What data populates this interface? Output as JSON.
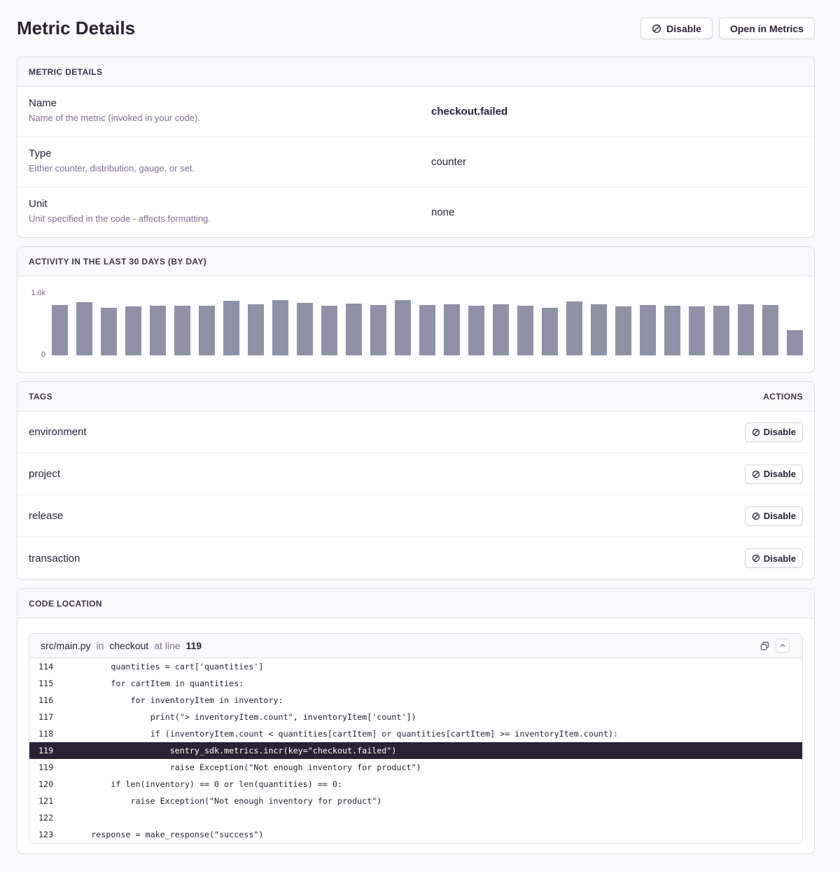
{
  "page": {
    "title": "Metric Details"
  },
  "header_buttons": {
    "disable": "Disable",
    "open": "Open in Metrics"
  },
  "details_panel": {
    "title": "METRIC DETAILS",
    "rows": [
      {
        "label": "Name",
        "description": "Name of the metric (invoked in your code).",
        "value": "checkout.failed",
        "bold": true
      },
      {
        "label": "Type",
        "description": "Either counter, distribution, gauge, or set.",
        "value": "counter",
        "bold": false
      },
      {
        "label": "Unit",
        "description": "Unit specified in the code - affects formatting.",
        "value": "none",
        "bold": false
      }
    ]
  },
  "chart_panel": {
    "title": "ACTIVITY IN THE LAST 30 DAYS (BY DAY)"
  },
  "chart_data": {
    "type": "bar",
    "title": "ACTIVITY IN THE LAST 30 DAYS (BY DAY)",
    "values": [
      1460,
      1530,
      1380,
      1410,
      1430,
      1440,
      1440,
      1570,
      1480,
      1600,
      1520,
      1440,
      1500,
      1460,
      1590,
      1460,
      1480,
      1440,
      1480,
      1430,
      1380,
      1550,
      1480,
      1410,
      1460,
      1440,
      1410,
      1430,
      1480,
      1460,
      720
    ],
    "ylim": [
      0,
      1800
    ],
    "yticks": [
      "1.8k",
      "0"
    ],
    "bar_color": "#8f91a8",
    "grid": false,
    "legend": false
  },
  "tags_panel": {
    "title": "TAGS",
    "actions_label": "ACTIONS",
    "disable_label": "Disable",
    "tags": [
      "environment",
      "project",
      "release",
      "transaction"
    ]
  },
  "code_panel": {
    "title": "CODE LOCATION",
    "file": "src/main.py",
    "in_word": "in",
    "function": "checkout",
    "at_line_words": "at line",
    "line_number": "119",
    "lines": [
      {
        "no": "114",
        "code": "        quantities = cart['quantities']",
        "highlight": false
      },
      {
        "no": "115",
        "code": "        for cartItem in quantities:",
        "highlight": false
      },
      {
        "no": "116",
        "code": "            for inventoryItem in inventory:",
        "highlight": false
      },
      {
        "no": "117",
        "code": "                print(\"> inventoryItem.count\", inventoryItem['count'])",
        "highlight": false
      },
      {
        "no": "118",
        "code": "                if (inventoryItem.count < quantities[cartItem] or quantities[cartItem] >= inventoryItem.count):",
        "highlight": false
      },
      {
        "no": "119",
        "code": "                    sentry_sdk.metrics.incr(key=\"checkout.failed\")",
        "highlight": true
      },
      {
        "no": "119",
        "code": "                    raise Exception(\"Not enough inventory for product\")",
        "highlight": false
      },
      {
        "no": "120",
        "code": "        if len(inventory) == 0 or len(quantities) == 0:",
        "highlight": false
      },
      {
        "no": "121",
        "code": "            raise Exception(\"Not enough inventory for product\")",
        "highlight": false
      },
      {
        "no": "122",
        "code": "",
        "highlight": false
      },
      {
        "no": "123",
        "code": "    response = make_response(\"success\")",
        "highlight": false
      }
    ]
  }
}
